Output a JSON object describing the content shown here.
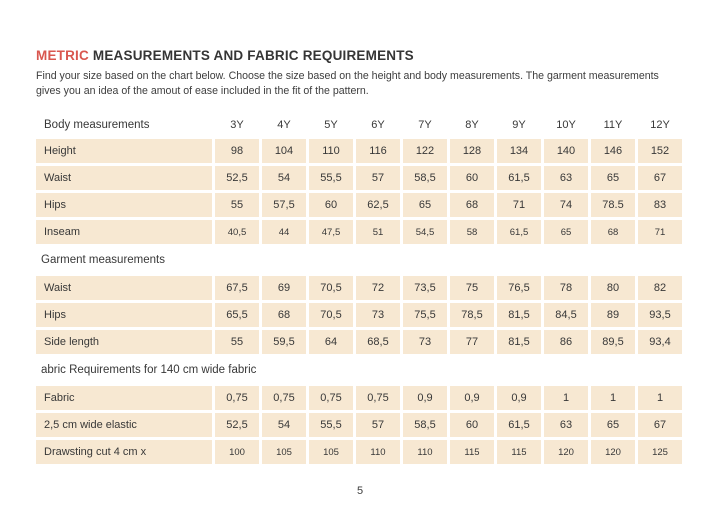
{
  "colors": {
    "accent": "#d9574f",
    "cell_bg": "#f7e8d2",
    "text": "#3a3a3a"
  },
  "header": {
    "title_highlight": "METRIC",
    "title_rest": "MEASUREMENTS AND FABRIC REQUIREMENTS",
    "subtitle_line1": "Find your size based on the chart below. Choose the size based on the height and body measurements. The garment measurements",
    "subtitle_line2": "gives you an idea of the amout of ease included in the fit of the pattern."
  },
  "table": {
    "header_label": "Body measurements",
    "sizes": [
      "3Y",
      "4Y",
      "5Y",
      "6Y",
      "7Y",
      "8Y",
      "9Y",
      "10Y",
      "11Y",
      "12Y"
    ],
    "rows": [
      {
        "type": "data",
        "label": "Height",
        "small": false,
        "values": [
          "98",
          "104",
          "110",
          "116",
          "122",
          "128",
          "134",
          "140",
          "146",
          "152"
        ]
      },
      {
        "type": "data",
        "label": "Waist",
        "small": false,
        "values": [
          "52,5",
          "54",
          "55,5",
          "57",
          "58,5",
          "60",
          "61,5",
          "63",
          "65",
          "67"
        ]
      },
      {
        "type": "data",
        "label": "Hips",
        "small": false,
        "values": [
          "55",
          "57,5",
          "60",
          "62,5",
          "65",
          "68",
          "71",
          "74",
          "78.5",
          "83"
        ]
      },
      {
        "type": "data",
        "label": "Inseam",
        "small": true,
        "values": [
          "40,5",
          "44",
          "47,5",
          "51",
          "54,5",
          "58",
          "61,5",
          "65",
          "68",
          "71"
        ]
      },
      {
        "type": "section",
        "label": "Garment measurements"
      },
      {
        "type": "data",
        "label": "Waist",
        "small": false,
        "values": [
          "67,5",
          "69",
          "70,5",
          "72",
          "73,5",
          "75",
          "76,5",
          "78",
          "80",
          "82"
        ]
      },
      {
        "type": "data",
        "label": "Hips",
        "small": false,
        "values": [
          "65,5",
          "68",
          "70,5",
          "73",
          "75,5",
          "78,5",
          "81,5",
          "84,5",
          "89",
          "93,5"
        ]
      },
      {
        "type": "data",
        "label": "Side length",
        "small": false,
        "values": [
          "55",
          "59,5",
          "64",
          "68,5",
          "73",
          "77",
          "81,5",
          "86",
          "89,5",
          "93,4"
        ]
      },
      {
        "type": "section",
        "label": "abric Requirements for 140 cm wide fabric"
      },
      {
        "type": "data",
        "label": "Fabric",
        "small": false,
        "values": [
          "0,75",
          "0,75",
          "0,75",
          "0,75",
          "0,9",
          "0,9",
          "0,9",
          "1",
          "1",
          "1"
        ]
      },
      {
        "type": "data",
        "label": "2,5 cm wide elastic",
        "small": false,
        "values": [
          "52,5",
          "54",
          "55,5",
          "57",
          "58,5",
          "60",
          "61,5",
          "63",
          "65",
          "67"
        ]
      },
      {
        "type": "data",
        "label": "Drawsting cut 4 cm x",
        "small": true,
        "values": [
          "100",
          "105",
          "105",
          "110",
          "110",
          "115",
          "115",
          "120",
          "120",
          "125"
        ]
      }
    ]
  },
  "footer": {
    "page_number": "5"
  }
}
